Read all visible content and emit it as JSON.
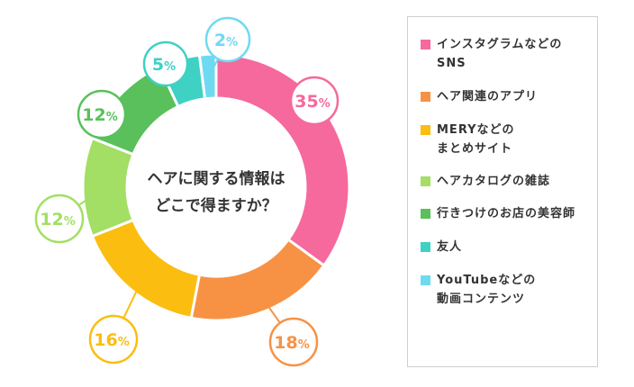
{
  "chart_data": {
    "type": "pie",
    "donut": true,
    "center_lines": [
      "ヘアに関する情報は",
      "どこで得ますか？"
    ],
    "slices": [
      {
        "label": "インスタグラムなどの\nSNS",
        "value": 35,
        "display": "35",
        "color": "#f5699d"
      },
      {
        "label": "ヘア関連のアプリ",
        "value": 18,
        "display": "18",
        "color": "#f79245"
      },
      {
        "label": "MERYなどの\nまとめサイト",
        "value": 16,
        "display": "16",
        "color": "#fbbd10"
      },
      {
        "label": "ヘアカタログの雑誌",
        "value": 12,
        "display": "12",
        "color": "#a2df64"
      },
      {
        "label": "行きつけのお店の美容師",
        "value": 12,
        "display": "12",
        "color": "#59c05b"
      },
      {
        "label": "友人",
        "value": 5,
        "display": "5",
        "color": "#3fd1c4"
      },
      {
        "label": "YouTubeなどの\n動画コンテンツ",
        "value": 2,
        "display": "2",
        "color": "#6edaf1"
      }
    ],
    "percent_suffix": "%"
  }
}
